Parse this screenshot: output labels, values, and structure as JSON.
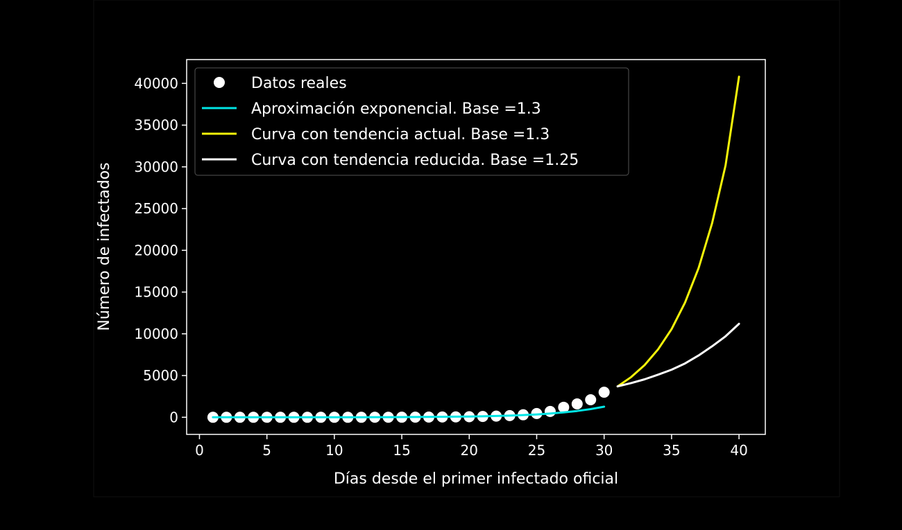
{
  "chart_data": {
    "type": "line",
    "title": "",
    "xlabel": "Días desde el primer infectado oficial",
    "ylabel": "Número de infectados",
    "xlim": [
      -0.95,
      41.95
    ],
    "ylim": [
      -2050,
      42850
    ],
    "xticks": [
      0,
      5,
      10,
      15,
      20,
      25,
      30,
      35,
      40
    ],
    "yticks": [
      0,
      5000,
      10000,
      15000,
      20000,
      25000,
      30000,
      35000,
      40000
    ],
    "grid": false,
    "legend_position": "top-left",
    "series": [
      {
        "name": "Datos reales",
        "kind": "scatter",
        "color": "#ffffff",
        "x": [
          1,
          2,
          3,
          4,
          5,
          6,
          7,
          8,
          9,
          10,
          11,
          12,
          13,
          14,
          15,
          16,
          17,
          18,
          19,
          20,
          21,
          22,
          23,
          24,
          25,
          26,
          27,
          28,
          29,
          30
        ],
        "values": [
          0,
          0,
          0,
          0,
          0,
          0,
          0,
          0,
          0,
          0,
          0,
          0,
          2,
          5,
          10,
          15,
          25,
          35,
          45,
          65,
          100,
          140,
          200,
          300,
          450,
          700,
          1200,
          1600,
          2100,
          3000
        ]
      },
      {
        "name": "Aproximación exponencial. Base =1.3",
        "kind": "line",
        "color": "#00e5e5",
        "x": [
          1,
          2,
          3,
          4,
          5,
          6,
          7,
          8,
          9,
          10,
          11,
          12,
          13,
          14,
          15,
          16,
          17,
          18,
          19,
          20,
          21,
          22,
          23,
          24,
          25,
          26,
          27,
          28,
          29,
          30
        ],
        "values": [
          0.6,
          0.8,
          1.1,
          1.4,
          1.8,
          2.4,
          3.1,
          4.0,
          5.2,
          6.7,
          8.7,
          11.3,
          14.7,
          19.1,
          24.8,
          32.3,
          42.0,
          54.6,
          71.0,
          92.3,
          120,
          156,
          203,
          263,
          342,
          445,
          579,
          752,
          978,
          1272
        ]
      },
      {
        "name": "Curva con tendencia actual. Base =1.3",
        "kind": "line",
        "color": "#f5f50a",
        "x": [
          31,
          32,
          33,
          34,
          35,
          36,
          37,
          38,
          39,
          40
        ],
        "values": [
          3700,
          4810,
          6250,
          8130,
          10560,
          13740,
          17860,
          23210,
          30180,
          40800
        ]
      },
      {
        "name": "Curva con tendencia reducida. Base =1.25",
        "kind": "line",
        "color": "#ffffff",
        "x": [
          31,
          32,
          33,
          34,
          35,
          36,
          37,
          38,
          39,
          40
        ],
        "values": [
          3700,
          4100,
          4550,
          5100,
          5700,
          6450,
          7400,
          8500,
          9700,
          11200
        ]
      }
    ]
  }
}
